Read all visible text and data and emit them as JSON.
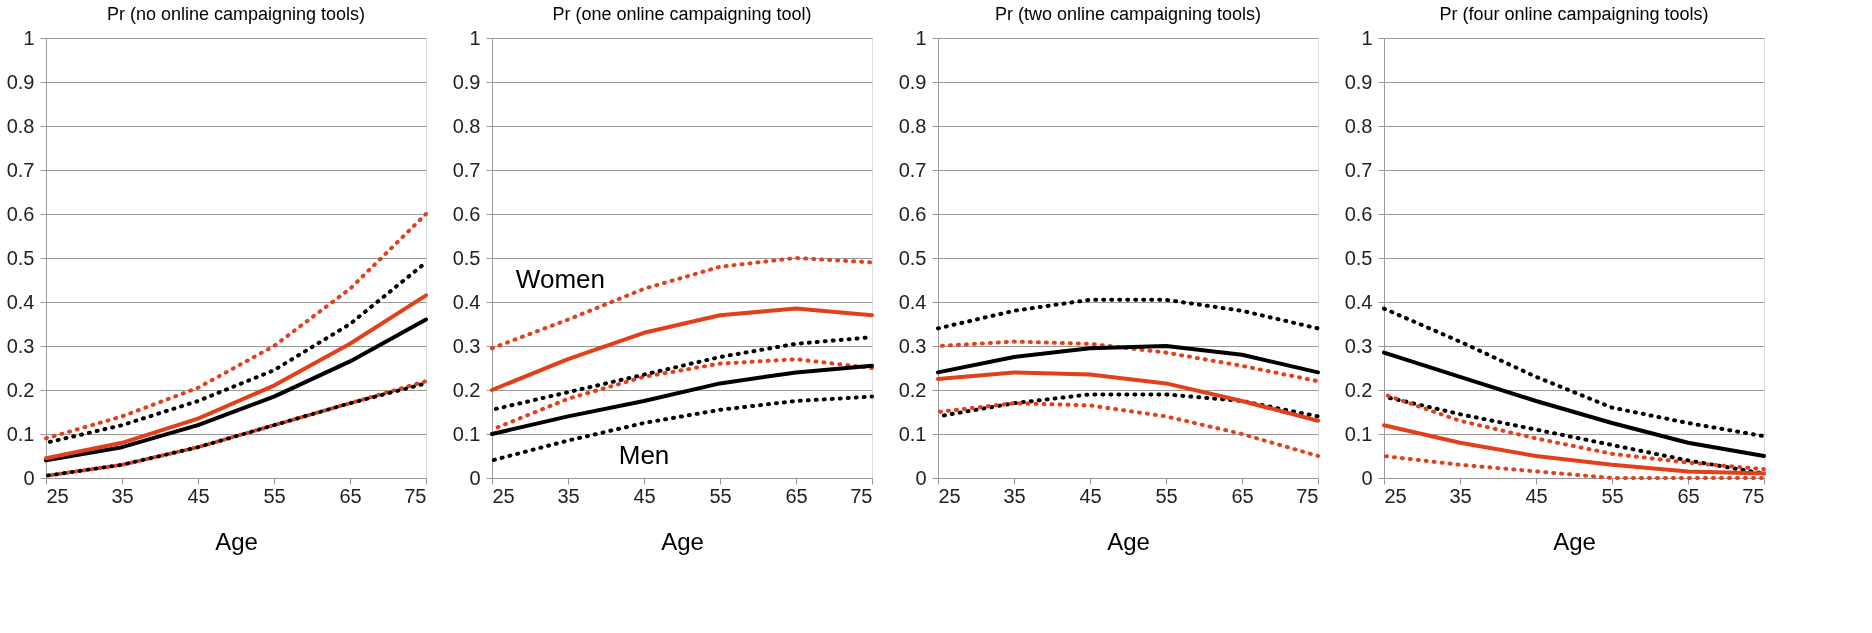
{
  "chart_data": [
    {
      "type": "line",
      "title": "Pr (no online campaigning tools)",
      "xlabel": "Age",
      "x": [
        25,
        35,
        45,
        55,
        65,
        75
      ],
      "xlim": [
        25,
        75
      ],
      "xticks": [
        25,
        35,
        45,
        55,
        65,
        75
      ],
      "ylim": [
        0,
        1
      ],
      "yticks": [
        0,
        0.1,
        0.2,
        0.3,
        0.4,
        0.5,
        0.6,
        0.7,
        0.8,
        0.9,
        1
      ],
      "grid": "y",
      "series": [
        {
          "color": "#e2401b",
          "line_style": "dotted",
          "values": [
            0.09,
            0.14,
            0.205,
            0.3,
            0.43,
            0.6
          ]
        },
        {
          "color": "#e2401b",
          "line_style": "dotted",
          "values": [
            0.005,
            0.03,
            0.07,
            0.12,
            0.17,
            0.22
          ]
        },
        {
          "color": "#000000",
          "line_style": "dotted",
          "values": [
            0.08,
            0.12,
            0.175,
            0.245,
            0.35,
            0.49
          ]
        },
        {
          "color": "#000000",
          "line_style": "dotted",
          "values": [
            0.005,
            0.03,
            0.07,
            0.12,
            0.17,
            0.215
          ]
        },
        {
          "color": "#000000",
          "line_style": "solid",
          "values": [
            0.04,
            0.07,
            0.12,
            0.185,
            0.265,
            0.36
          ]
        },
        {
          "color": "#e2401b",
          "line_style": "solid",
          "values": [
            0.045,
            0.08,
            0.135,
            0.21,
            0.305,
            0.415
          ]
        }
      ]
    },
    {
      "type": "line",
      "title": "Pr (one online campaigning tool)",
      "xlabel": "Age",
      "x": [
        25,
        35,
        45,
        55,
        65,
        75
      ],
      "xlim": [
        25,
        75
      ],
      "xticks": [
        25,
        35,
        45,
        55,
        65,
        75
      ],
      "ylim": [
        0,
        1
      ],
      "yticks": [
        0,
        0.1,
        0.2,
        0.3,
        0.4,
        0.5,
        0.6,
        0.7,
        0.8,
        0.9,
        1
      ],
      "grid": "y",
      "annotations": [
        "Women",
        "Men"
      ],
      "series": [
        {
          "color": "#e2401b",
          "line_style": "dotted",
          "values": [
            0.295,
            0.36,
            0.43,
            0.48,
            0.5,
            0.49
          ]
        },
        {
          "color": "#e2401b",
          "line_style": "dotted",
          "values": [
            0.11,
            0.18,
            0.23,
            0.26,
            0.27,
            0.25
          ]
        },
        {
          "color": "#000000",
          "line_style": "dotted",
          "values": [
            0.155,
            0.195,
            0.235,
            0.275,
            0.305,
            0.32
          ]
        },
        {
          "color": "#000000",
          "line_style": "dotted",
          "values": [
            0.04,
            0.085,
            0.125,
            0.155,
            0.175,
            0.185
          ]
        },
        {
          "color": "#000000",
          "line_style": "solid",
          "values": [
            0.1,
            0.14,
            0.175,
            0.215,
            0.24,
            0.255
          ]
        },
        {
          "color": "#e2401b",
          "line_style": "solid",
          "values": [
            0.2,
            0.27,
            0.33,
            0.37,
            0.385,
            0.37
          ]
        }
      ]
    },
    {
      "type": "line",
      "title": "Pr (two online campaigning tools)",
      "xlabel": "Age",
      "x": [
        25,
        35,
        45,
        55,
        65,
        75
      ],
      "xlim": [
        25,
        75
      ],
      "xticks": [
        25,
        35,
        45,
        55,
        65,
        75
      ],
      "ylim": [
        0,
        1
      ],
      "yticks": [
        0,
        0.1,
        0.2,
        0.3,
        0.4,
        0.5,
        0.6,
        0.7,
        0.8,
        0.9,
        1
      ],
      "grid": "y",
      "series": [
        {
          "color": "#000000",
          "line_style": "dotted",
          "values": [
            0.34,
            0.38,
            0.405,
            0.405,
            0.38,
            0.34
          ]
        },
        {
          "color": "#000000",
          "line_style": "dotted",
          "values": [
            0.14,
            0.17,
            0.19,
            0.19,
            0.175,
            0.14
          ]
        },
        {
          "color": "#e2401b",
          "line_style": "dotted",
          "values": [
            0.3,
            0.31,
            0.305,
            0.285,
            0.255,
            0.22
          ]
        },
        {
          "color": "#e2401b",
          "line_style": "dotted",
          "values": [
            0.15,
            0.17,
            0.165,
            0.14,
            0.1,
            0.05
          ]
        },
        {
          "color": "#000000",
          "line_style": "solid",
          "values": [
            0.24,
            0.275,
            0.295,
            0.3,
            0.28,
            0.24
          ]
        },
        {
          "color": "#e2401b",
          "line_style": "solid",
          "values": [
            0.225,
            0.24,
            0.235,
            0.215,
            0.175,
            0.13
          ]
        }
      ]
    },
    {
      "type": "line",
      "title": "Pr (four online campaigning tools)",
      "xlabel": "Age",
      "x": [
        25,
        35,
        45,
        55,
        65,
        75
      ],
      "xlim": [
        25,
        75
      ],
      "xticks": [
        25,
        35,
        45,
        55,
        65,
        75
      ],
      "ylim": [
        0,
        1
      ],
      "yticks": [
        0,
        0.1,
        0.2,
        0.3,
        0.4,
        0.5,
        0.6,
        0.7,
        0.8,
        0.9,
        1
      ],
      "grid": "y",
      "series": [
        {
          "color": "#000000",
          "line_style": "dotted",
          "values": [
            0.385,
            0.31,
            0.23,
            0.16,
            0.125,
            0.095
          ]
        },
        {
          "color": "#000000",
          "line_style": "dotted",
          "values": [
            0.185,
            0.145,
            0.11,
            0.075,
            0.04,
            0.01
          ]
        },
        {
          "color": "#e2401b",
          "line_style": "dotted",
          "values": [
            0.19,
            0.13,
            0.09,
            0.055,
            0.035,
            0.02
          ]
        },
        {
          "color": "#e2401b",
          "line_style": "dotted",
          "values": [
            0.05,
            0.03,
            0.015,
            0.0,
            0.0,
            0.0
          ]
        },
        {
          "color": "#000000",
          "line_style": "solid",
          "values": [
            0.285,
            0.23,
            0.175,
            0.125,
            0.08,
            0.05
          ]
        },
        {
          "color": "#e2401b",
          "line_style": "solid",
          "values": [
            0.12,
            0.08,
            0.05,
            0.03,
            0.015,
            0.01
          ]
        }
      ]
    }
  ]
}
